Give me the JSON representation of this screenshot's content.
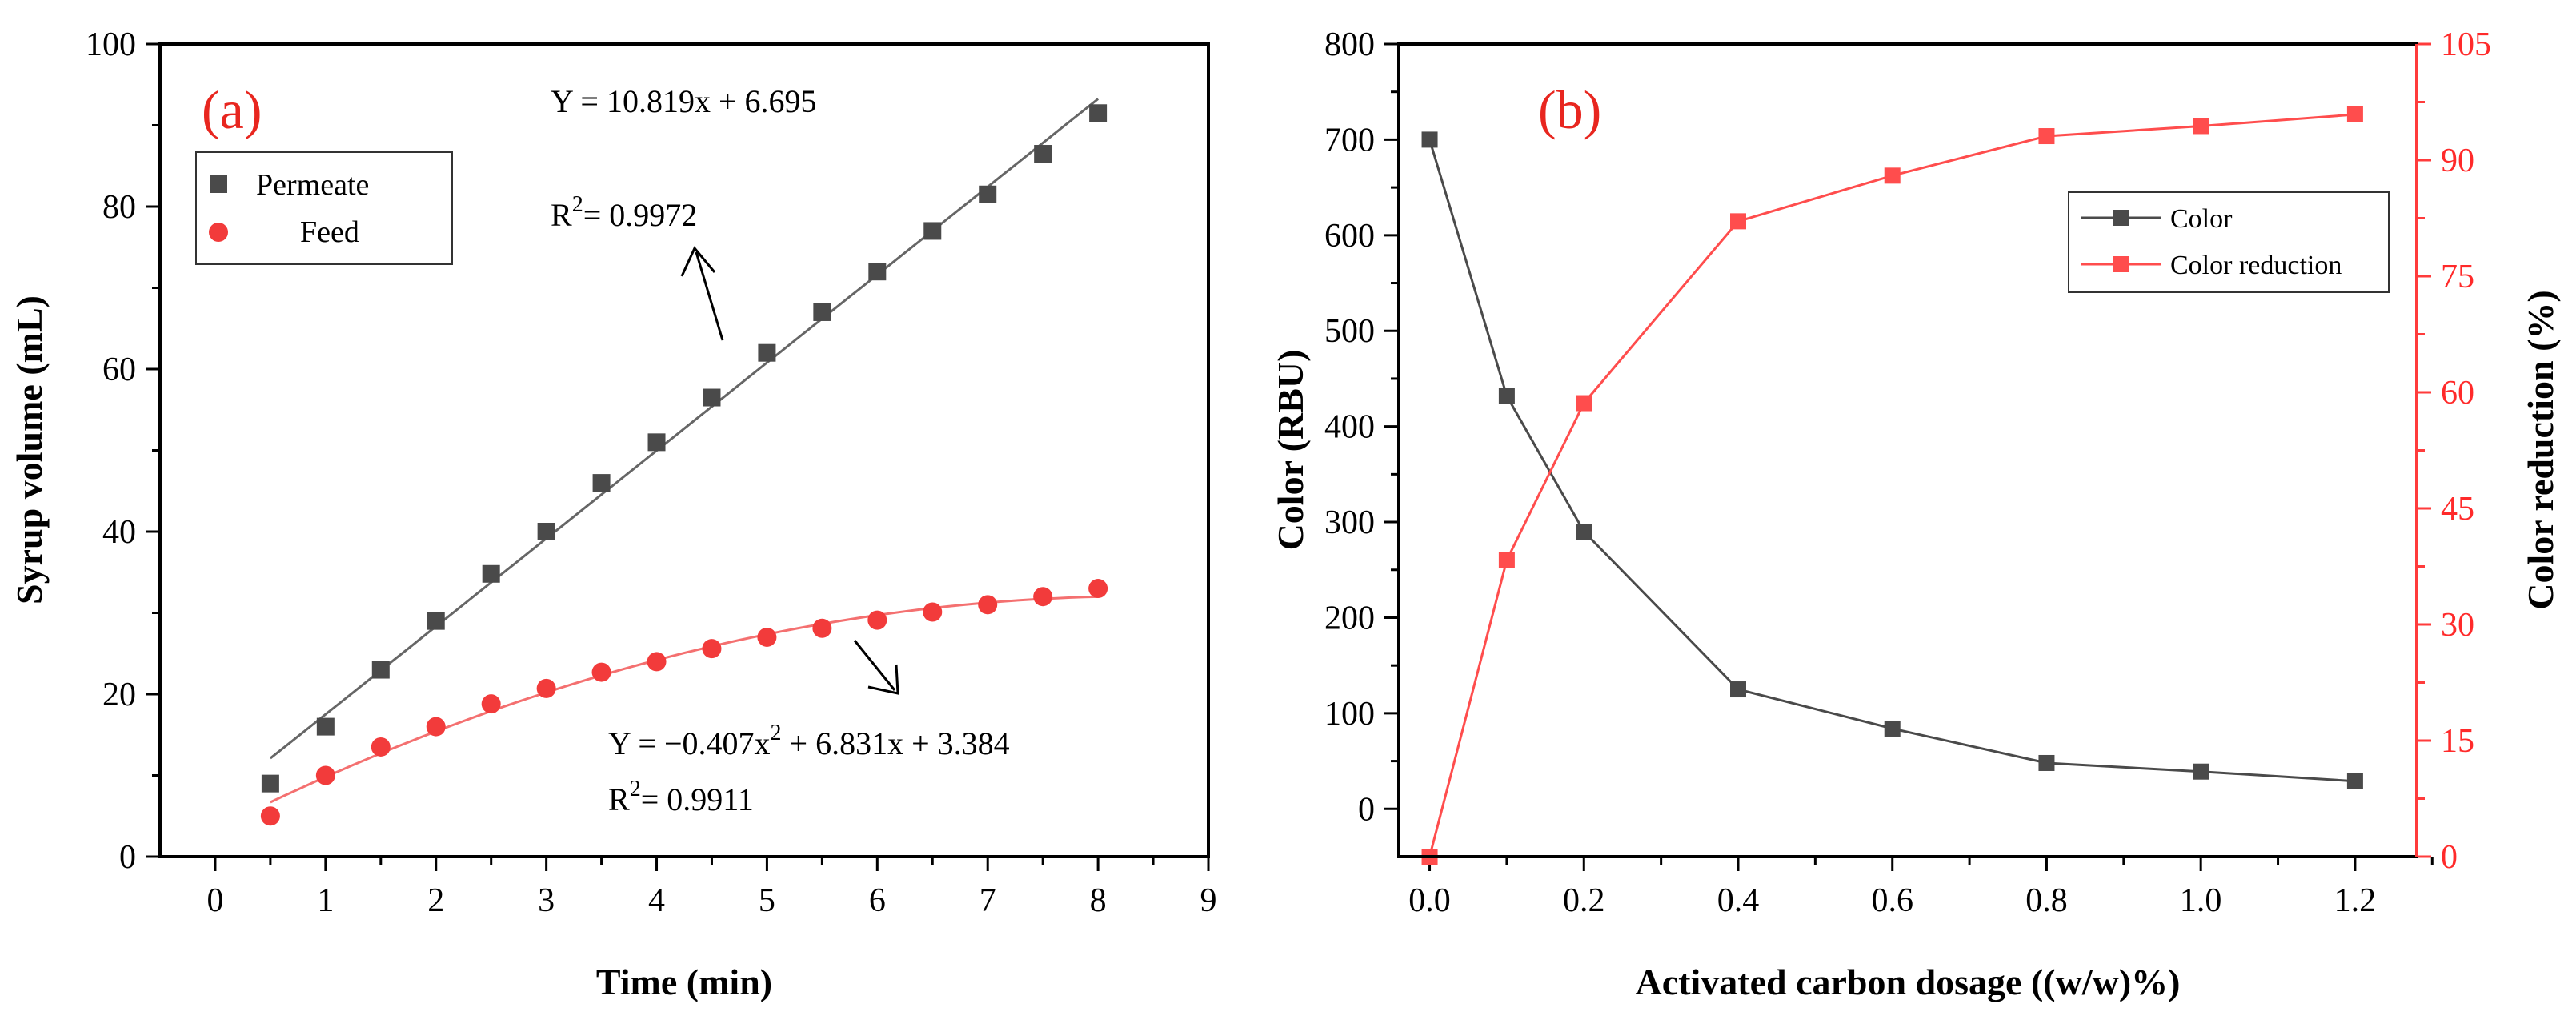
{
  "chart_data": [
    {
      "type": "scatter",
      "panel_label": "(a)",
      "xlabel": "Time (min)",
      "ylabel": "Syrup volume (mL)",
      "xlim": [
        -0.5,
        9
      ],
      "ylim": [
        0,
        100
      ],
      "xticks": [
        "0",
        "1",
        "2",
        "3",
        "4",
        "5",
        "6",
        "7",
        "8",
        "9"
      ],
      "yticks": [
        "0",
        "20",
        "40",
        "60",
        "80",
        "100"
      ],
      "series": [
        {
          "name": "Permeate",
          "marker": "square",
          "color": "#4a4a4a",
          "x": [
            0.5,
            1,
            1.5,
            2,
            2.5,
            3,
            3.5,
            4,
            4.5,
            5,
            5.5,
            6,
            6.5,
            7,
            7.5,
            8
          ],
          "y": [
            9,
            16,
            23,
            29,
            34.8,
            40,
            46,
            51,
            56.5,
            62,
            67,
            72,
            77,
            81.5,
            86.5,
            91.5
          ],
          "fit": {
            "type": "linear",
            "slope": 10.819,
            "intercept": 6.695,
            "x_range": [
              0.5,
              8
            ]
          }
        },
        {
          "name": "Feed",
          "marker": "circle",
          "color": "#f23b3b",
          "x": [
            0.5,
            1,
            1.5,
            2,
            2.5,
            3,
            3.5,
            4,
            4.5,
            5,
            5.5,
            6,
            6.5,
            7,
            7.5,
            8
          ],
          "y": [
            5,
            10,
            13.5,
            16,
            18.8,
            20.7,
            22.7,
            24,
            25.6,
            27,
            28.1,
            29.1,
            30.1,
            31,
            32,
            33
          ],
          "fit": {
            "type": "quadratic",
            "a": -0.407,
            "b": 6.831,
            "c": 3.384,
            "x_range": [
              0.5,
              8
            ]
          }
        }
      ],
      "annotations": {
        "eq1_prefix": "Y = 10.819x  + 6.695",
        "r2_1_prefix": "R",
        "r2_1_sup": "2",
        "r2_1_suffix": "= 0.9972",
        "eq2_part1": "Y = −0.407x",
        "eq2_sup": "2",
        "eq2_part2": " + 6.831x  + 3.384",
        "r2_2_prefix": "R",
        "r2_2_sup": "2",
        "r2_2_suffix": "= 0.9911"
      },
      "legend_position": "top-left"
    },
    {
      "type": "line",
      "panel_label": "(b)",
      "xlabel": "Activated carbon dosage ((w/w)%)",
      "ylabel": "Color (RBU)",
      "ylabel_right": "Color reduction (%)",
      "xlim": [
        -0.04,
        1.28
      ],
      "ylim": [
        -50,
        800
      ],
      "ylim_right": [
        0,
        105
      ],
      "xticks": [
        "0.0",
        "0.2",
        "0.4",
        "0.6",
        "0.8",
        "1.0",
        "1.2"
      ],
      "yticks": [
        "0",
        "100",
        "200",
        "300",
        "400",
        "500",
        "600",
        "700",
        "800"
      ],
      "yticks_right": [
        "0",
        "15",
        "30",
        "45",
        "60",
        "75",
        "90",
        "105"
      ],
      "x": [
        0,
        0.1,
        0.2,
        0.4,
        0.6,
        0.8,
        1.0,
        1.2
      ],
      "series": [
        {
          "name": "Color",
          "axis": "left",
          "marker": "square",
          "color": "#4a4a4a",
          "values": [
            700,
            432,
            290,
            125,
            84,
            48,
            39,
            29
          ]
        },
        {
          "name": "Color reduction",
          "axis": "right",
          "marker": "square",
          "color": "#ff4d4d",
          "values": [
            0,
            38.3,
            58.6,
            82.1,
            88.0,
            93.1,
            94.4,
            95.9
          ]
        }
      ],
      "legend_position": "right"
    }
  ]
}
